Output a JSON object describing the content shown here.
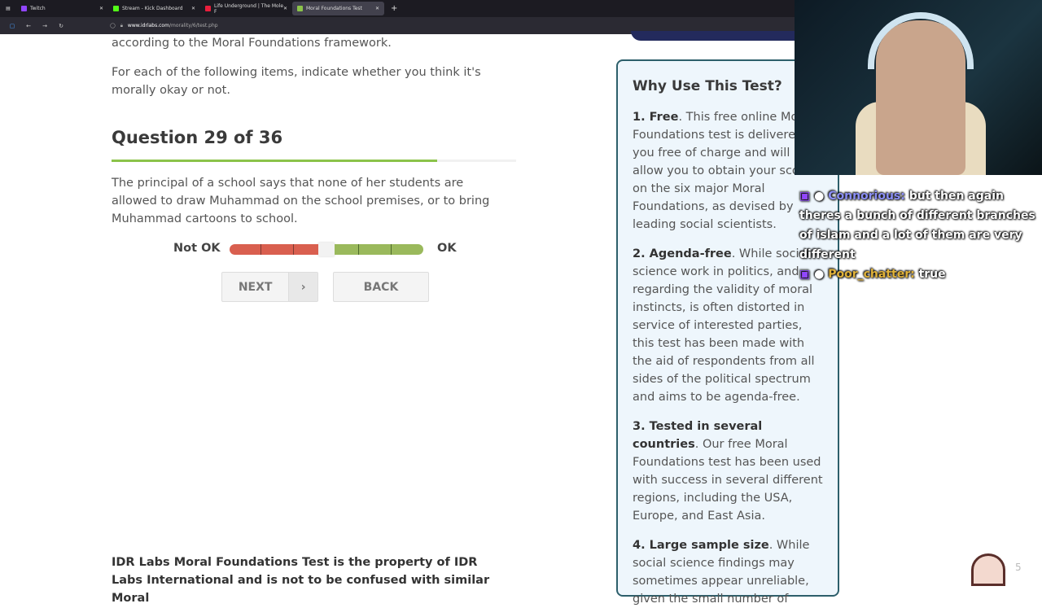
{
  "browser": {
    "tabs": [
      {
        "label": "Twitch",
        "color": "#9146ff"
      },
      {
        "label": "Stream - Kick Dashboard",
        "color": "#53fc18"
      },
      {
        "label": "Life Underground | The Mole F",
        "color": "#e91e3c"
      },
      {
        "label": "Moral Foundations Test",
        "color": "#8bc34a",
        "active": true
      }
    ],
    "url_domain": "www.idrlabs.com",
    "url_path": "/morality/6/test.php"
  },
  "intro": {
    "p1_end": "according to the Moral Foundations framework.",
    "p2": "For each of the following items, indicate whether you think it's morally okay or not."
  },
  "question": {
    "title": "Question 29 of 36",
    "progress": 0.8056,
    "text": "The principal of a school says that none of her students are allowed to draw Muhammad on the school premises, or to bring Muhammad cartoons to school.",
    "left_label": "Not OK",
    "right_label": "OK",
    "slider_value": "neutral",
    "next": "NEXT",
    "back": "BACK"
  },
  "footer": "IDR Labs Moral Foundations Test is the property of IDR Labs International and is not to be confused with similar Moral",
  "sidebar": {
    "title": "Why Use This Test?",
    "items": [
      {
        "h": "1. Free",
        "t": ". This free online Moral Foundations test is delivered to you free of charge and will allow you to obtain your scores on the six major Moral Foundations, as devised by leading social scientists."
      },
      {
        "h": "2. Agenda-free",
        "t": ". While social science work in politics, and regarding the validity of moral instincts, is often distorted in service of interested parties, this test has been made with the aid of respondents from all sides of the political spectrum and aims to be agenda-free."
      },
      {
        "h": "3. Tested in several countries",
        "t": ". Our free Moral Foundations test has been used with success in several different regions, including the USA, Europe, and East Asia."
      },
      {
        "h": "4. Large sample size",
        "t": ". While social science findings may sometimes appear unreliable, given the small number of"
      }
    ]
  },
  "chat": [
    {
      "user": "Connorious:",
      "msg": " but then again theres a bunch of different branches of islam and a lot of them are very different"
    },
    {
      "user": "Poor_chatter:",
      "msg": " true"
    }
  ],
  "overlay_number": "5"
}
